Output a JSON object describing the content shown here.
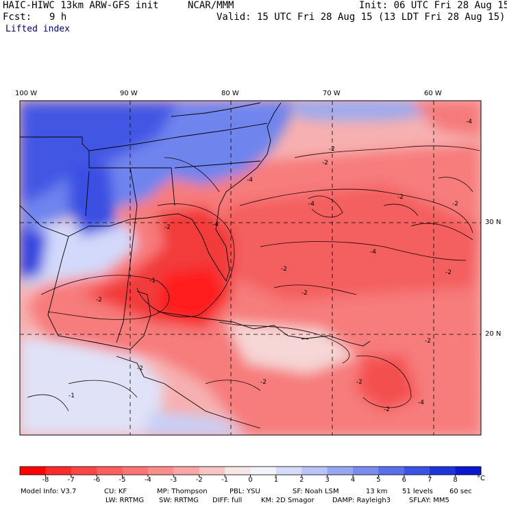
{
  "header": {
    "model_title": "HAIC-HIWC 13km ARW-GFS init",
    "org": "NCAR/MMM",
    "init": "Init: 06 UTC Fri 28 Aug 15",
    "fcst_label": "Fcst:",
    "fcst_value": "9 h",
    "valid": "Valid: 15 UTC Fri 28 Aug 15 (13 LDT Fri 28 Aug 15)",
    "field": "Lifted index"
  },
  "map": {
    "lon_labels": [
      "100 W",
      "90 W",
      "80 W",
      "70 W",
      "60 W"
    ],
    "lat_labels": [
      "30 N",
      "20 N"
    ],
    "contour_labels": [
      "-2",
      "-4",
      "-1",
      "-2",
      "-4",
      "-2",
      "-2",
      "-1",
      "-2",
      "-4",
      "-2",
      "-2",
      "-2",
      "-4",
      "-2",
      "-2",
      "-2",
      "-2",
      "-4",
      "-2",
      "-4",
      "-2"
    ],
    "colors": {
      "deep_red": "#ff1a1a",
      "red": "#f43f3f",
      "mid_red": "#f86464",
      "light_red": "#fb9797",
      "pale_red": "#fcc8c8",
      "neutral": "#f6eef0",
      "pale_blue": "#c8d2fb",
      "light_blue": "#8da4f4",
      "mid_blue": "#5a72ea",
      "blue": "#2f46e2",
      "deep_blue": "#0e1fd6"
    }
  },
  "colorbar": {
    "ticks": [
      "-8",
      "-7",
      "-6",
      "-5",
      "-4",
      "-3",
      "-2",
      "-1",
      "0",
      "1",
      "2",
      "3",
      "4",
      "5",
      "6",
      "7",
      "8"
    ],
    "unit": "°C",
    "colors": [
      "#ff0000",
      "#ff2a2a",
      "#fe4444",
      "#fd5e5e",
      "#fc7474",
      "#fb8d8d",
      "#faa6a6",
      "#f9c4c4",
      "#f7e6e6",
      "#f2f2fb",
      "#d6dcfa",
      "#b8c4f6",
      "#97a7f1",
      "#7a8def",
      "#5a70eb",
      "#3b53e5",
      "#1f35dc",
      "#0b17d0"
    ]
  },
  "footer": {
    "model_info": "Model Info: V3.7",
    "cu": "CU: KF",
    "mp": "MP: Thompson",
    "pbl": "PBL: YSU",
    "sf": "SF: Noah LSM",
    "res": "13 km",
    "levels": "51 levels",
    "dt": "60 sec",
    "lw": "LW: RRTMG",
    "sw": "SW: RRTMG",
    "diff": "DIFF: full",
    "km": "KM: 2D Smagor",
    "damp": "DAMP: Rayleigh3",
    "sflay": "SFLAY: MM5"
  }
}
